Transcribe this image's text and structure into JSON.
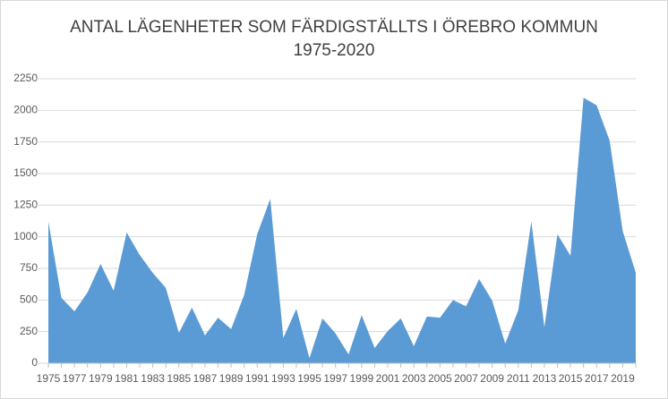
{
  "chart_data": {
    "type": "area",
    "title": "ANTAL LÄGENHETER SOM FÄRDIGSTÄLLTS I ÖREBRO KOMMUN",
    "subtitle": "1975-2020",
    "categories": [
      "1975",
      null,
      "1977",
      null,
      "1979",
      null,
      "1981",
      null,
      "1983",
      null,
      "1985",
      null,
      "1987",
      null,
      "1989",
      null,
      "1991",
      null,
      "1993",
      null,
      "1995",
      null,
      "1997",
      null,
      "1999",
      null,
      "2001",
      null,
      "2003",
      null,
      "2005",
      null,
      "2007",
      null,
      "2009",
      null,
      "2011",
      null,
      "2013",
      null,
      "2015",
      null,
      "2017",
      null,
      "2019",
      null
    ],
    "values": [
      1120,
      517,
      410,
      560,
      785,
      573,
      1033,
      856,
      715,
      595,
      240,
      440,
      220,
      360,
      270,
      540,
      1020,
      1300,
      200,
      430,
      40,
      355,
      235,
      70,
      380,
      120,
      255,
      355,
      135,
      370,
      360,
      500,
      450,
      665,
      495,
      155,
      420,
      1120,
      285,
      1020,
      850,
      2100,
      2040,
      1760,
      1045,
      715
    ],
    "color": "#5b9bd5",
    "ylim": [
      0,
      2250
    ],
    "yticks": [
      0,
      250,
      500,
      750,
      1000,
      1250,
      1500,
      1750,
      2000,
      2250
    ],
    "grid": true
  }
}
